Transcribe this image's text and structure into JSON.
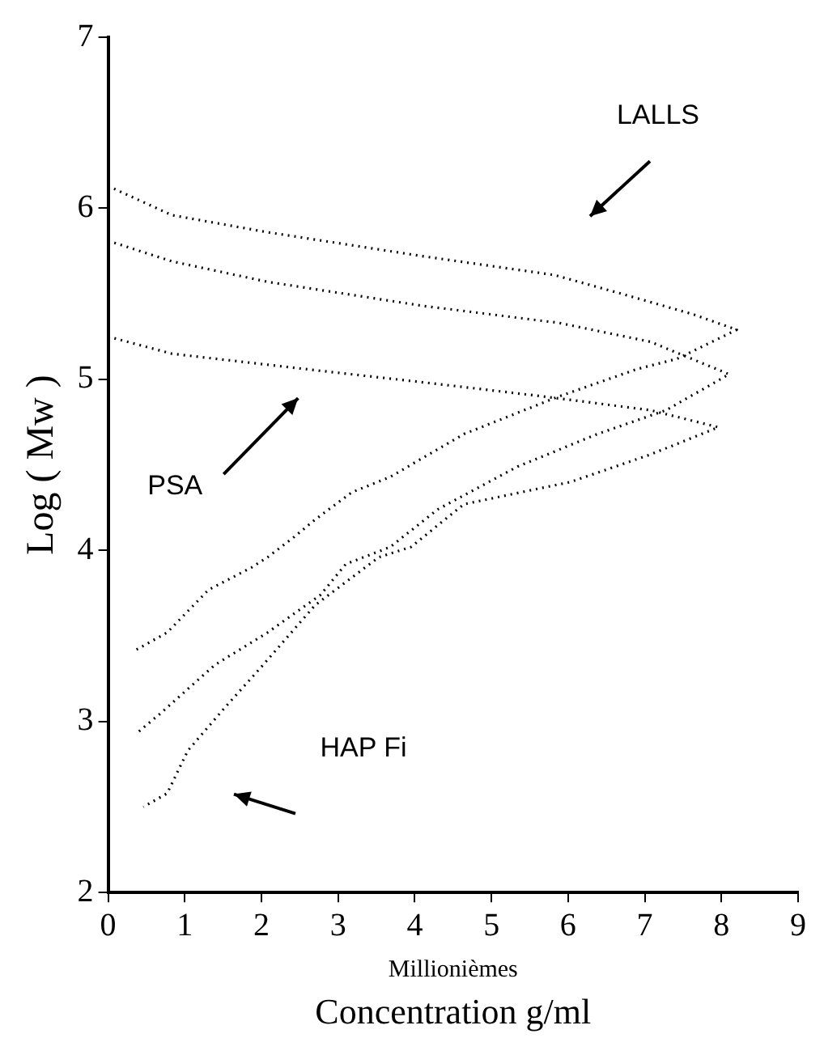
{
  "chart_data": {
    "type": "line",
    "xlabel": "Concentration g/ml",
    "ylabel": "Log ( Mw )",
    "xlim": [
      0,
      9
    ],
    "xticks": [
      0,
      1,
      2,
      3,
      4,
      5,
      6,
      7,
      8,
      9
    ],
    "ylim": [
      2,
      7
    ],
    "yticks": [
      2,
      3,
      4,
      5,
      6,
      7
    ],
    "grid": false,
    "legend": false,
    "marker": "none",
    "line_style": "dotted",
    "annotations": [
      "Millionièmes",
      "LALLS",
      "PSA",
      "HAP Fi"
    ],
    "series": [
      {
        "color": "#000000",
        "x": [
          0,
          0.83,
          2.08,
          4.1,
          5.82,
          6.7,
          7.63,
          8.2,
          7.42,
          6.9,
          5.88,
          4.64,
          3.68,
          3.18,
          2.7,
          2.43,
          2.08,
          1.87,
          1.31,
          0.77,
          0.37
        ],
        "values": [
          6.13,
          5.96,
          5.86,
          5.72,
          5.61,
          5.5,
          5.38,
          5.29,
          5.12,
          5.06,
          4.9,
          4.68,
          4.43,
          4.34,
          4.18,
          4.08,
          3.96,
          3.9,
          3.77,
          3.52,
          3.42
        ]
      },
      {
        "color": "#000000",
        "x": [
          0,
          0.83,
          2.08,
          4.1,
          5.88,
          7.07,
          8.1,
          7.28,
          6.38,
          5.34,
          4.3,
          3.68,
          3.1,
          2.77,
          2.08,
          1.39,
          0.69,
          0.37
        ],
        "values": [
          5.81,
          5.69,
          5.57,
          5.43,
          5.33,
          5.22,
          5.03,
          4.82,
          4.68,
          4.49,
          4.24,
          4.02,
          3.92,
          3.74,
          3.52,
          3.33,
          3.05,
          2.93
        ]
      },
      {
        "color": "#000000",
        "x": [
          0,
          0.83,
          2.77,
          4.16,
          5.68,
          7.07,
          7.96,
          7.07,
          6.03,
          4.64,
          3.95,
          3.53,
          2.7,
          2.02,
          1.52,
          1.04,
          0.77,
          0.46
        ],
        "values": [
          5.25,
          5.15,
          5.05,
          4.98,
          4.9,
          4.82,
          4.72,
          4.56,
          4.4,
          4.27,
          4.02,
          3.96,
          3.68,
          3.33,
          3.08,
          2.83,
          2.58,
          2.5
        ]
      }
    ]
  }
}
